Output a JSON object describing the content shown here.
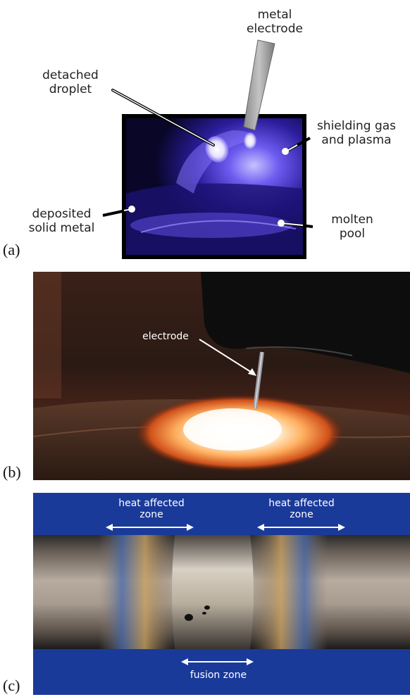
{
  "figure": {
    "panel_a": {
      "letter": "(a)",
      "labels": {
        "metal_electrode_1": "metal",
        "metal_electrode_2": "electrode",
        "detached_droplet_1": "detached",
        "detached_droplet_2": "droplet",
        "shielding_gas_1": "shielding gas",
        "shielding_gas_2": "and plasma",
        "deposited_metal_1": "deposited",
        "deposited_metal_2": "solid metal",
        "molten_pool_1": "molten",
        "molten_pool_2": "pool"
      }
    },
    "panel_b": {
      "letter": "(b)",
      "labels": {
        "electrode": "electrode"
      }
    },
    "panel_c": {
      "letter": "(c)",
      "labels": {
        "haz_left_1": "heat affected",
        "haz_left_2": "zone",
        "haz_right_1": "heat affected",
        "haz_right_2": "zone",
        "fusion_zone": "fusion zone"
      }
    }
  }
}
